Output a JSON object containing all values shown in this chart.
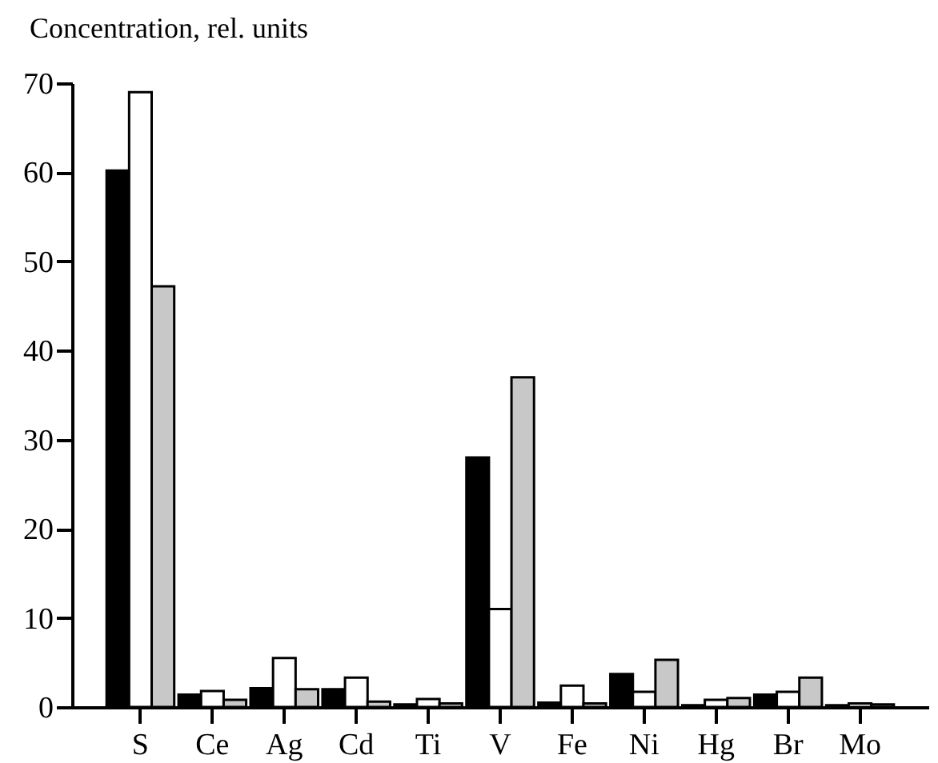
{
  "chart_data": {
    "type": "bar",
    "ylabel": "Concentration, rel. units",
    "categories": [
      "S",
      "Ce",
      "Ag",
      "Cd",
      "Ti",
      "V",
      "Fe",
      "Ni",
      "Hg",
      "Br",
      "Mo"
    ],
    "series": [
      {
        "color": "#000000",
        "values": [
          60.2,
          1.4,
          2.1,
          2.0,
          0.3,
          28,
          0.5,
          3.7,
          0.2,
          1.4,
          0.2
        ]
      },
      {
        "color": "#ffffff",
        "values": [
          69,
          1.8,
          5.5,
          3.3,
          0.9,
          11,
          2.4,
          1.7,
          0.8,
          1.7,
          0.4
        ]
      },
      {
        "color": "#c8c8c8",
        "values": [
          47.2,
          0.8,
          2.0,
          0.6,
          0.4,
          37,
          0.4,
          5.3,
          1.0,
          3.3,
          0.3
        ]
      }
    ],
    "ylim": [
      0,
      70
    ],
    "yticks": [
      0,
      10,
      20,
      30,
      40,
      50,
      60,
      70
    ],
    "grid": false,
    "legend": false
  }
}
